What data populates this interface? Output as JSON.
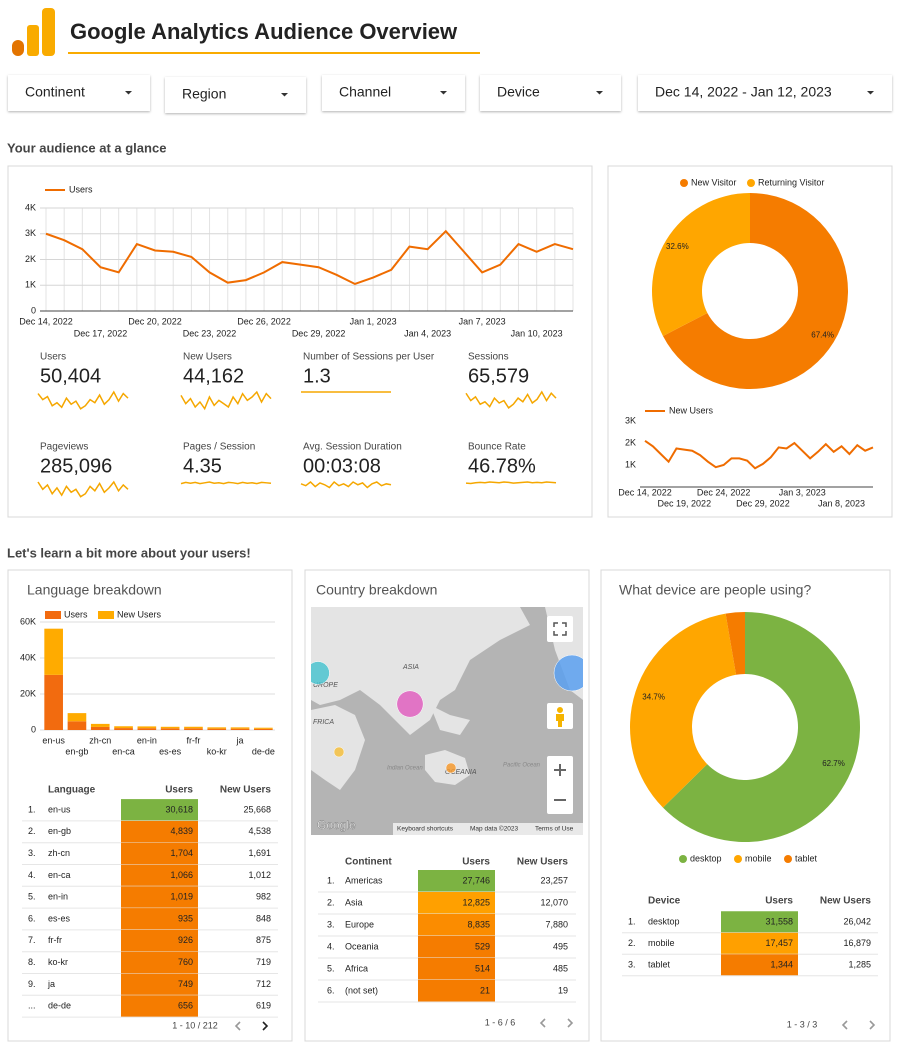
{
  "header": {
    "title": "Google Analytics Audience Overview"
  },
  "filters": [
    "Continent",
    "Region",
    "Channel",
    "Device",
    "Dec 14, 2022 - Jan 12, 2023"
  ],
  "sections": [
    "Your audience at a glance",
    "Let's learn a bit more about your users!"
  ],
  "kpis": [
    {
      "label": "Users",
      "value": "50,404",
      "trend": [
        2300,
        1900,
        2100,
        1500,
        1700,
        1400,
        2000,
        1600,
        1800,
        1300,
        1500,
        1900,
        1700,
        2200,
        1600,
        1900,
        2400,
        1800,
        2300,
        2000
      ]
    },
    {
      "label": "New Users",
      "value": "44,162",
      "trend": [
        2000,
        1500,
        1800,
        1300,
        1600,
        1200,
        1900,
        1400,
        1700,
        1500,
        1300,
        1900,
        1500,
        2100,
        1700,
        1900,
        2200,
        1600,
        2100,
        1800
      ]
    },
    {
      "label": "Number of Sessions per User",
      "value": "1.3",
      "trend": [
        1.3,
        1.3,
        1.3,
        1.3,
        1.3,
        1.3,
        1.3,
        1.3,
        1.3,
        1.3,
        1.3,
        1.3,
        1.3,
        1.3,
        1.3,
        1.3,
        1.3,
        1.3,
        1.3,
        1.3
      ]
    },
    {
      "label": "Sessions",
      "value": "65,579",
      "trend": [
        2900,
        2300,
        2600,
        2000,
        2200,
        1800,
        2500,
        2100,
        2300,
        1700,
        2000,
        2500,
        2200,
        2800,
        2100,
        2400,
        3000,
        2300,
        2900,
        2500
      ]
    },
    {
      "label": "Pageviews",
      "value": "285,096",
      "trend": [
        12500,
        10000,
        11500,
        8500,
        10500,
        8000,
        11000,
        9000,
        10000,
        7500,
        8500,
        11000,
        9500,
        12000,
        9000,
        10500,
        12500,
        9500,
        11500,
        10000
      ]
    },
    {
      "label": "Pages / Session",
      "value": "4.35",
      "trend": [
        4.3,
        4.45,
        4.35,
        4.45,
        4.3,
        4.4,
        4.5,
        4.35,
        4.4,
        4.3,
        4.45,
        4.4,
        4.3,
        4.45,
        4.35,
        4.4,
        4.3,
        4.45,
        4.4,
        4.35
      ]
    },
    {
      "label": "Avg. Session Duration",
      "value": "00:03:08",
      "trend": [
        190,
        180,
        200,
        175,
        195,
        185,
        170,
        200,
        180,
        190,
        175,
        200,
        185,
        195,
        170,
        190,
        200,
        180,
        190,
        185
      ]
    },
    {
      "label": "Bounce Rate",
      "value": "46.78%",
      "trend": [
        46,
        45.5,
        46.5,
        47,
        46.5,
        47.5,
        47,
        46.5,
        47.5,
        47,
        46,
        46.5,
        47,
        47.5,
        46.5,
        47,
        46.5,
        47.5,
        47,
        46.5
      ]
    }
  ],
  "chart_data": [
    {
      "type": "line",
      "x": [
        "Dec 14, 2022",
        "Dec 15, 2022",
        "Dec 16, 2022",
        "Dec 17, 2022",
        "Dec 18, 2022",
        "Dec 19, 2022",
        "Dec 20, 2022",
        "Dec 21, 2022",
        "Dec 22, 2022",
        "Dec 23, 2022",
        "Dec 24, 2022",
        "Dec 25, 2022",
        "Dec 26, 2022",
        "Dec 27, 2022",
        "Dec 28, 2022",
        "Dec 29, 2022",
        "Dec 30, 2022",
        "Dec 31, 2022",
        "Jan 1, 2023",
        "Jan 2, 2023",
        "Jan 3, 2023",
        "Jan 4, 2023",
        "Jan 5, 2023",
        "Jan 6, 2023",
        "Jan 7, 2023",
        "Jan 8, 2023",
        "Jan 9, 2023",
        "Jan 10, 2023",
        "Jan 11, 2023",
        "Jan 12, 2023"
      ],
      "series": [
        {
          "name": "Users",
          "color": "#ef6c00",
          "values": [
            3000,
            2750,
            2400,
            1700,
            1500,
            2600,
            2350,
            2300,
            2100,
            1500,
            1100,
            1200,
            1500,
            1900,
            1800,
            1700,
            1400,
            1050,
            1300,
            1600,
            2500,
            2400,
            3100,
            2300,
            1500,
            1800,
            2600,
            2300,
            2600,
            2400
          ]
        }
      ],
      "ylim": [
        0,
        4000
      ],
      "yticks": [
        0,
        {
          "value": 1000,
          "label": "1K"
        },
        {
          "value": 2000,
          "label": "2K"
        },
        {
          "value": 3000,
          "label": "3K"
        },
        {
          "value": 4000,
          "label": "4K"
        }
      ],
      "grid": true,
      "legend": "top-left"
    },
    {
      "type": "pie",
      "categories": [
        "New Visitor",
        "Returning Visitor"
      ],
      "values": [
        67.4,
        32.6
      ],
      "value_labels": [
        "67.4%",
        "32.6%"
      ],
      "colors": [
        "#f57c00",
        "#ffa600"
      ],
      "legend": "top"
    },
    {
      "type": "line",
      "x": [
        "Dec 14, 2022",
        "Dec 15, 2022",
        "Dec 16, 2022",
        "Dec 17, 2022",
        "Dec 18, 2022",
        "Dec 19, 2022",
        "Dec 20, 2022",
        "Dec 21, 2022",
        "Dec 22, 2022",
        "Dec 23, 2022",
        "Dec 24, 2022",
        "Dec 25, 2022",
        "Dec 26, 2022",
        "Dec 27, 2022",
        "Dec 28, 2022",
        "Dec 29, 2022",
        "Dec 30, 2022",
        "Dec 31, 2022",
        "Jan 1, 2023",
        "Jan 2, 2023",
        "Jan 3, 2023",
        "Jan 4, 2023",
        "Jan 5, 2023",
        "Jan 6, 2023",
        "Jan 7, 2023",
        "Jan 8, 2023",
        "Jan 9, 2023",
        "Jan 10, 2023",
        "Jan 11, 2023",
        "Jan 12, 2023"
      ],
      "series": [
        {
          "name": "New Users",
          "color": "#ef6c00",
          "values": [
            2100,
            1850,
            1500,
            1150,
            1750,
            1700,
            1650,
            1450,
            1150,
            900,
            1000,
            1300,
            1300,
            1200,
            850,
            1050,
            1350,
            1800,
            1750,
            2000,
            1650,
            1300,
            1600,
            1950,
            1600,
            1850,
            1500,
            1900,
            1650,
            1800
          ]
        }
      ],
      "ylim": [
        0,
        3000
      ],
      "yticks": [
        {
          "value": 1000,
          "label": "1K"
        },
        {
          "value": 2000,
          "label": "2K"
        },
        {
          "value": 3000,
          "label": "3K"
        }
      ],
      "grid": false,
      "legend": "top-left"
    },
    {
      "type": "bar",
      "title": "Language breakdown",
      "stacked": true,
      "categories": [
        "en-us",
        "en-gb",
        "zh-cn",
        "en-ca",
        "en-in",
        "es-es",
        "fr-fr",
        "ko-kr",
        "ja",
        "de-de"
      ],
      "series": [
        {
          "name": "Users",
          "color": "#f26b0f",
          "values": [
            30618,
            4839,
            1704,
            1066,
            1019,
            935,
            926,
            760,
            749,
            656
          ]
        },
        {
          "name": "New Users",
          "color": "#ffab00",
          "values": [
            25668,
            4538,
            1691,
            1012,
            982,
            848,
            875,
            719,
            712,
            619
          ]
        }
      ],
      "ylim": [
        0,
        60000
      ],
      "yticks": [
        0,
        {
          "value": 20000,
          "label": "20K"
        },
        {
          "value": 40000,
          "label": "40K"
        },
        {
          "value": 60000,
          "label": "60K"
        }
      ],
      "grid": true,
      "legend": "top-left"
    },
    {
      "type": "pie",
      "title": "What device are people using?",
      "categories": [
        "desktop",
        "mobile",
        "tablet"
      ],
      "values": [
        62.7,
        34.7,
        2.7
      ],
      "value_labels": [
        "62.7%",
        "34.7%",
        null
      ],
      "colors": [
        "#7cb342",
        "#ffa600",
        "#f57c00"
      ],
      "legend": "bottom"
    }
  ],
  "map": {
    "title": "Country breakdown",
    "labels": [
      "ASIA",
      "UROPE",
      "FRICA",
      "OCEANIA",
      "Indian Ocean",
      "Pacific Ocean"
    ],
    "logo": "Google",
    "attribution": [
      "Keyboard shortcuts",
      "Map data ©2023",
      "Terms of Use"
    ],
    "bubbles": [
      {
        "name": "Americas",
        "value": 27746,
        "color": "#5aa0f0"
      },
      {
        "name": "Asia",
        "value": 12825,
        "color": "#e060c0"
      },
      {
        "name": "Europe",
        "value": 8835,
        "color": "#4cc4d0"
      },
      {
        "name": "Oceania",
        "value": 529,
        "color": "#f59a30"
      },
      {
        "name": "Africa",
        "value": 514,
        "color": "#f5c040"
      }
    ]
  },
  "tables": {
    "language": {
      "columns": [
        "Language",
        "Users",
        "New Users"
      ],
      "rows": [
        [
          "1.",
          "en-us",
          "30,618",
          "25,668"
        ],
        [
          "2.",
          "en-gb",
          "4,839",
          "4,538"
        ],
        [
          "3.",
          "zh-cn",
          "1,704",
          "1,691"
        ],
        [
          "4.",
          "en-ca",
          "1,066",
          "1,012"
        ],
        [
          "5.",
          "en-in",
          "1,019",
          "982"
        ],
        [
          "6.",
          "es-es",
          "935",
          "848"
        ],
        [
          "7.",
          "fr-fr",
          "926",
          "875"
        ],
        [
          "8.",
          "ko-kr",
          "760",
          "719"
        ],
        [
          "9.",
          "ja",
          "749",
          "712"
        ],
        [
          "...",
          "de-de",
          "656",
          "619"
        ]
      ],
      "cell_colors": [
        "#7cb342",
        "#f57c00",
        "#f57c00",
        "#f57c00",
        "#f57c00",
        "#f57c00",
        "#f57c00",
        "#f57c00",
        "#f57c00",
        "#f57c00"
      ],
      "pagination": "1 - 10 / 212"
    },
    "country": {
      "columns": [
        "Continent",
        "Users",
        "New Users"
      ],
      "rows": [
        [
          "1.",
          "Americas",
          "27,746",
          "23,257"
        ],
        [
          "2.",
          "Asia",
          "12,825",
          "12,070"
        ],
        [
          "3.",
          "Europe",
          "8,835",
          "7,880"
        ],
        [
          "4.",
          "Oceania",
          "529",
          "495"
        ],
        [
          "5.",
          "Africa",
          "514",
          "485"
        ],
        [
          "6.",
          "(not set)",
          "21",
          "19"
        ]
      ],
      "cell_colors": [
        "#7cb342",
        "#ffa000",
        "#fb8c00",
        "#f57c00",
        "#f57c00",
        "#f57c00"
      ],
      "pagination": "1 - 6 / 6"
    },
    "device": {
      "columns": [
        "Device",
        "Users",
        "New Users"
      ],
      "rows": [
        [
          "1.",
          "desktop",
          "31,558",
          "26,042"
        ],
        [
          "2.",
          "mobile",
          "17,457",
          "16,879"
        ],
        [
          "3.",
          "tablet",
          "1,344",
          "1,285"
        ]
      ],
      "cell_colors": [
        "#7cb342",
        "#ffa000",
        "#f57c00"
      ],
      "pagination": "1 - 3 / 3"
    }
  }
}
